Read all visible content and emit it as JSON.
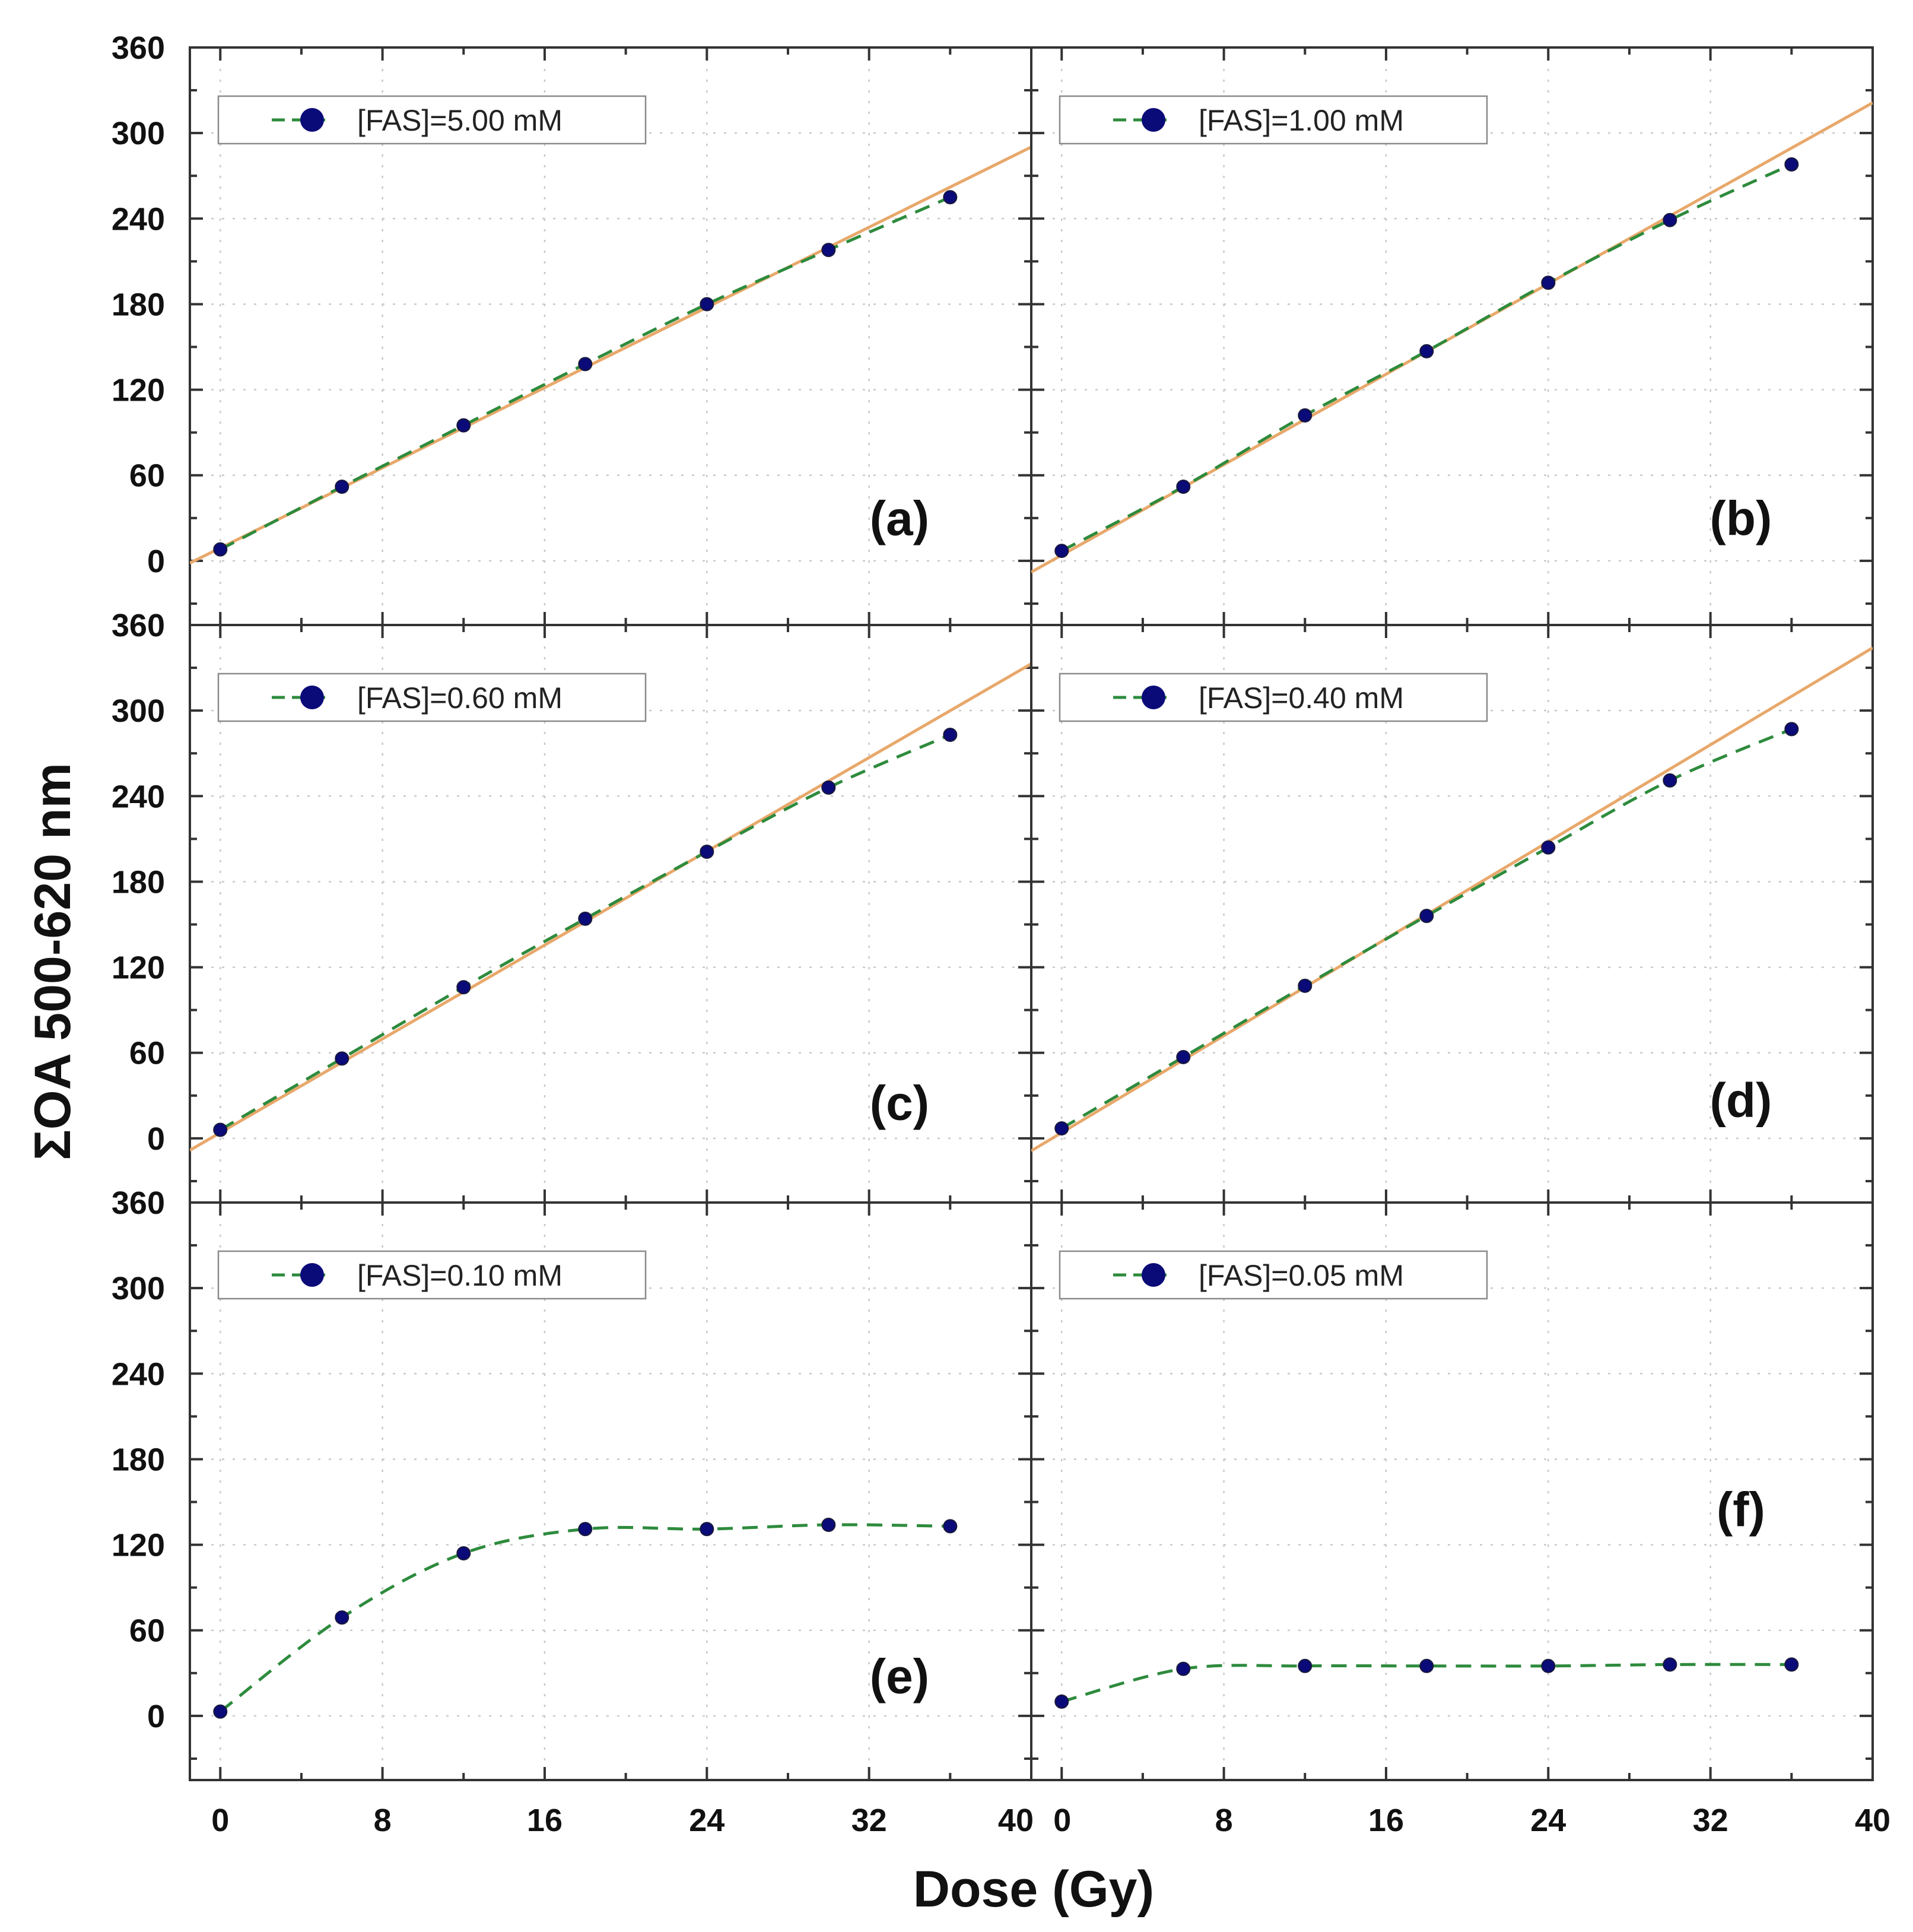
{
  "colors": {
    "fit_line": "#e8a86b",
    "dashed_line": "#2e8b3d",
    "marker": "#0a0a78",
    "axis": "#333333"
  },
  "chart_data": {
    "type": "line",
    "xlabel": "Dose (Gy)",
    "ylabel": "ΣOA 500-620 nm",
    "xlim": [
      -1.5,
      40
    ],
    "ylim": [
      -45,
      360
    ],
    "x_ticks": [
      0,
      8,
      16,
      24,
      32,
      40
    ],
    "y_ticks": [
      0,
      60,
      120,
      180,
      240,
      300,
      360
    ],
    "panels": [
      {
        "tag": "(a)",
        "legend": "[FAS]=5.00 mM",
        "x": [
          0,
          6,
          12,
          18,
          24,
          30,
          36
        ],
        "y": [
          8,
          52,
          95,
          138,
          180,
          218,
          255
        ],
        "linear_fit": {
          "slope": 7.03,
          "intercept": 9
        },
        "tag_pos": {
          "x": 33.5,
          "y": 18
        }
      },
      {
        "tag": "(b)",
        "legend": "[FAS]=1.00 mM",
        "x": [
          0,
          6,
          12,
          18,
          24,
          30,
          36
        ],
        "y": [
          7,
          52,
          102,
          147,
          195,
          239,
          278
        ],
        "linear_fit": {
          "slope": 7.93,
          "intercept": 4
        },
        "tag_pos": {
          "x": 33.5,
          "y": 18
        }
      },
      {
        "tag": "(c)",
        "legend": "[FAS]=0.60 mM",
        "x": [
          0,
          6,
          12,
          18,
          24,
          30,
          36
        ],
        "y": [
          6,
          56,
          106,
          154,
          201,
          246,
          283
        ],
        "linear_fit": {
          "slope": 8.22,
          "intercept": 4
        },
        "tag_pos": {
          "x": 33.5,
          "y": 13
        }
      },
      {
        "tag": "(d)",
        "legend": "[FAS]=0.40 mM",
        "x": [
          0,
          6,
          12,
          18,
          24,
          30,
          36
        ],
        "y": [
          7,
          57,
          107,
          156,
          204,
          251,
          287
        ],
        "linear_fit": {
          "slope": 8.5,
          "intercept": 4
        },
        "tag_pos": {
          "x": 33.5,
          "y": 15
        }
      },
      {
        "tag": "(e)",
        "legend": "[FAS]=0.10 mM",
        "x": [
          0,
          6,
          12,
          18,
          24,
          30,
          36
        ],
        "y": [
          3,
          69,
          114,
          131,
          131,
          134,
          133
        ],
        "linear_fit": null,
        "tag_pos": {
          "x": 33.5,
          "y": 16
        }
      },
      {
        "tag": "(f)",
        "legend": "[FAS]=0.05 mM",
        "x": [
          0,
          6,
          12,
          18,
          24,
          30,
          36
        ],
        "y": [
          10,
          33,
          35,
          35,
          35,
          36,
          36
        ],
        "linear_fit": null,
        "tag_pos": {
          "x": 33.5,
          "y": 133
        }
      }
    ]
  }
}
